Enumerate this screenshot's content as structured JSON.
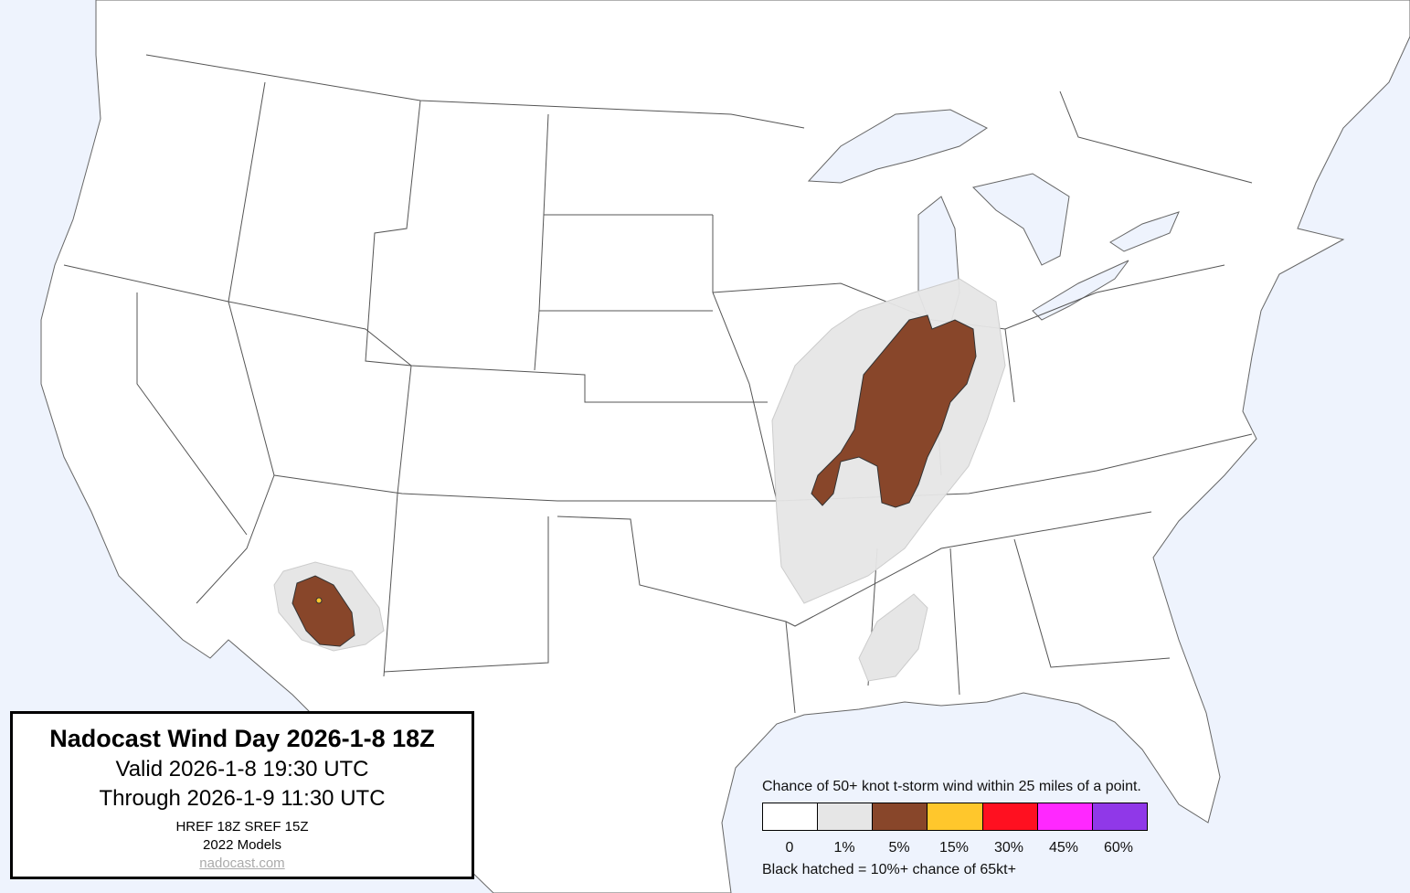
{
  "title_box": {
    "title": "Nadocast Wind Day 2026-1-8 18Z",
    "valid": "Valid 2026-1-8 19:30 UTC",
    "through": "Through 2026-1-9 11:30 UTC",
    "models_run": "HREF 18Z SREF 15Z",
    "models_version": "2022 Models",
    "link": "nadocast.com"
  },
  "legend": {
    "title": "Chance of 50+ knot t-storm wind within 25 miles of a point.",
    "levels": [
      {
        "label": "0",
        "color": "#ffffff"
      },
      {
        "label": "1%",
        "color": "#e6e6e6"
      },
      {
        "label": "5%",
        "color": "#88462a"
      },
      {
        "label": "15%",
        "color": "#ffc72c"
      },
      {
        "label": "30%",
        "color": "#ff1020"
      },
      {
        "label": "45%",
        "color": "#ff28ff"
      },
      {
        "label": "60%",
        "color": "#9038e8"
      }
    ],
    "note": "Black hatched = 10%+ chance of 65kt+"
  },
  "colors": {
    "water": "#eef3fd",
    "land": "#ffffff",
    "borders": "#555555"
  }
}
